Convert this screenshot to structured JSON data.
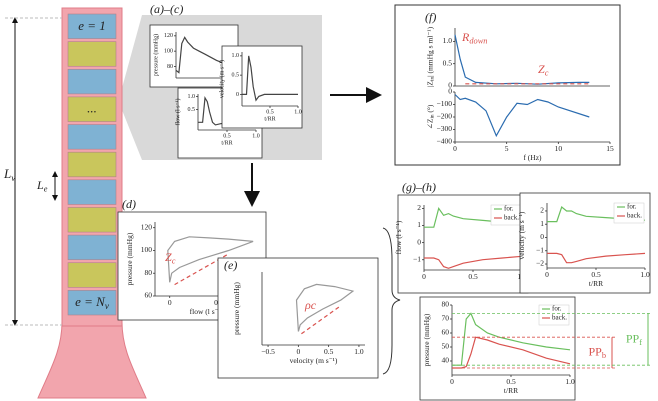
{
  "vessel": {
    "segment_labels": [
      "e = 1",
      "...",
      {
        "text": "e = N",
        "sub": "v"
      }
    ],
    "length_label": {
      "text": "L",
      "sub": "v"
    },
    "element_label": {
      "text": "L",
      "sub": "e"
    }
  },
  "panels": [
    "(a)–(c)",
    "(f)",
    "(d)",
    "(e)",
    "(g)–(h)"
  ],
  "plots": [
    {
      "ylabel": "pressure (mmHg)",
      "xlim": [
        0,
        1
      ],
      "ylim": [
        65,
        125
      ],
      "yticks": [
        80,
        100,
        120
      ],
      "xticks": [],
      "series": [
        {
          "color": "#444",
          "x": [
            0,
            0.05,
            0.1,
            0.15,
            0.2,
            0.3,
            0.4,
            0.5,
            0.6,
            0.7,
            0.8,
            0.9,
            1
          ],
          "y": [
            75,
            72,
            110,
            118,
            112,
            104,
            100,
            96,
            92,
            88,
            85,
            82,
            80
          ]
        }
      ]
    },
    {
      "ylabel": "flow (l s⁻¹)",
      "xlabel": "t/RR",
      "xlim": [
        0,
        1
      ],
      "ylim": [
        -0.3,
        1.1
      ],
      "yticks": [
        0.5,
        {
          "value": 1,
          "label": "1.0"
        }
      ],
      "xticks": [
        0.5,
        {
          "value": 1,
          "label": "1.0"
        }
      ],
      "series": [
        {
          "color": "#444",
          "x": [
            0,
            0.08,
            0.12,
            0.16,
            0.2,
            0.25,
            0.3,
            0.4,
            0.6,
            1
          ],
          "y": [
            0,
            0,
            0.95,
            0.8,
            0.4,
            0,
            -0.1,
            -0.05,
            -0.02,
            -0.02
          ]
        }
      ]
    },
    {
      "ylabel": "velocity (m s⁻¹)",
      "xlabel": "t/RR",
      "xlim": [
        0,
        1
      ],
      "ylim": [
        -0.3,
        1.1
      ],
      "yticks": [
        0,
        0.5,
        {
          "value": 1,
          "label": "1.0"
        }
      ],
      "xticks": [
        0.5,
        {
          "value": 1,
          "label": "1.0"
        }
      ],
      "series": [
        {
          "color": "#444",
          "x": [
            0,
            0.08,
            0.12,
            0.16,
            0.2,
            0.25,
            0.3,
            0.4,
            0.6,
            1
          ],
          "y": [
            0,
            0,
            1.0,
            0.7,
            0.2,
            -0.15,
            -0.05,
            0,
            0,
            0
          ]
        }
      ]
    },
    {
      "ylabel": {
        "text": "|Z",
        "sub": "in",
        "after": "| (mmHg s ml⁻¹)"
      },
      "xlim": [
        0,
        15
      ],
      "ylim": [
        0,
        1.3
      ],
      "yticks": [
        0,
        0.5,
        {
          "value": 1,
          "label": "1.0"
        }
      ],
      "xticks": [],
      "series": [
        {
          "color": "#2b6cb0",
          "x": [
            0,
            0.5,
            1,
            2,
            4,
            6,
            8,
            10,
            12,
            13
          ],
          "y": [
            1.15,
            0.6,
            0.2,
            0.08,
            0.05,
            0.06,
            0.04,
            0.07,
            0.08,
            0.08
          ]
        },
        {
          "color": "#d9534f",
          "dashed": true,
          "x": [
            1,
            13
          ],
          "y": [
            0.05,
            0.05
          ]
        }
      ],
      "annotations": [
        {
          "label": {
            "text": "R",
            "sub": "down"
          },
          "color": "#d9534f"
        },
        {
          "label": {
            "text": "Z",
            "sub": "c"
          },
          "color": "#d9534f"
        }
      ]
    },
    {
      "ylabel": {
        "text": "∠Z",
        "sub": "in",
        "after": " (°)"
      },
      "xlabel": "f (Hz)",
      "xlim": [
        0,
        15
      ],
      "ylim": [
        -400,
        0
      ],
      "yticks": [
        0,
        {
          "value": -100,
          "label": "−100"
        },
        {
          "value": -200,
          "label": "−200"
        },
        {
          "value": -300,
          "label": "−300"
        },
        {
          "value": -400,
          "label": "−400"
        }
      ],
      "xticks": [
        0,
        5,
        10,
        15
      ],
      "series": [
        {
          "color": "#2b6cb0",
          "x": [
            0,
            0.5,
            1,
            2,
            3,
            4,
            5,
            6,
            7,
            8,
            9,
            10,
            13
          ],
          "y": [
            -20,
            -60,
            -50,
            -80,
            -150,
            -350,
            -200,
            -90,
            -100,
            -60,
            -80,
            -120,
            -200
          ]
        }
      ]
    },
    {
      "ylabel": "pressure (mmHg)",
      "xlabel": "flow (l s⁻¹)",
      "xlim": [
        -0.15,
        0.9
      ],
      "ylim": [
        60,
        125
      ],
      "yticks": [
        60,
        80,
        100,
        120
      ],
      "xticks": [
        0,
        0.5
      ],
      "series": [
        {
          "color": "#999",
          "x": [
            0,
            -0.02,
            0.05,
            0.2,
            0.4,
            0.6,
            0.85,
            0.6,
            0.3,
            0.1,
            0.02,
            0
          ],
          "y": [
            72,
            100,
            108,
            112,
            111,
            110,
            108,
            100,
            92,
            85,
            80,
            72
          ]
        },
        {
          "color": "#d9534f",
          "dashed": true,
          "x": [
            0.05,
            0.6
          ],
          "y": [
            70,
            97
          ]
        }
      ],
      "annotations": [
        {
          "label": {
            "text": "Z",
            "sub": "c"
          },
          "color": "#d9534f"
        }
      ]
    },
    {
      "ylabel": "pressure (mmHg)",
      "xlabel": "velocity (m s⁻¹)",
      "xlim": [
        -0.6,
        1.1
      ],
      "ylim": [
        60,
        125
      ],
      "yticks": [],
      "xticks": [
        {
          "value": -0.5,
          "label": "−0.5"
        },
        0,
        0.5,
        {
          "value": 1,
          "label": "1.0"
        }
      ],
      "series": [
        {
          "color": "#999",
          "x": [
            0,
            -0.03,
            0.1,
            0.3,
            0.6,
            0.9,
            0.7,
            0.4,
            0.15,
            0.03,
            0
          ],
          "y": [
            72,
            100,
            110,
            114,
            112,
            108,
            100,
            92,
            84,
            78,
            72
          ]
        },
        {
          "color": "#d9534f",
          "dashed": true,
          "x": [
            0.05,
            0.7
          ],
          "y": [
            70,
            95
          ]
        }
      ],
      "annotations": [
        {
          "label": "ρc",
          "color": "#d9534f"
        }
      ]
    },
    {
      "ylabel": "flow (l s⁻¹)",
      "xlim": [
        0,
        1
      ],
      "ylim": [
        -1.6,
        2.2
      ],
      "yticks": [
        {
          "value": -1,
          "label": "−1"
        },
        0,
        1,
        2
      ],
      "xticks": [
        0,
        0.5,
        {
          "value": 1,
          "label": "1.0"
        }
      ],
      "legend": true,
      "series": [
        {
          "name": "for.",
          "color": "#6abf5e",
          "x": [
            0,
            0.1,
            0.15,
            0.2,
            0.25,
            0.3,
            0.4,
            0.6,
            0.8,
            1
          ],
          "y": [
            0.9,
            0.9,
            2.0,
            1.6,
            1.7,
            1.55,
            1.4,
            1.3,
            1.2,
            1.1
          ]
        },
        {
          "name": "back.",
          "color": "#d9534f",
          "x": [
            0,
            0.1,
            0.15,
            0.2,
            0.25,
            0.3,
            0.4,
            0.6,
            0.8,
            1
          ],
          "y": [
            -0.9,
            -0.9,
            -1.0,
            -1.4,
            -1.5,
            -1.4,
            -1.2,
            -1.0,
            -0.9,
            -0.8
          ]
        }
      ]
    },
    {
      "ylabel": "velocity (m s⁻¹)",
      "xlabel": "t/RR",
      "xlim": [
        0,
        1
      ],
      "ylim": [
        -2.3,
        2.6
      ],
      "yticks": [
        {
          "value": -2,
          "label": "−2"
        },
        {
          "value": -1,
          "label": "−1"
        },
        0,
        1,
        2
      ],
      "xticks": [
        0,
        0.5,
        {
          "value": 1,
          "label": "1.0"
        }
      ],
      "legend": true,
      "series": [
        {
          "name": "for.",
          "color": "#6abf5e",
          "x": [
            0,
            0.1,
            0.15,
            0.2,
            0.25,
            0.3,
            0.4,
            0.6,
            0.8,
            1
          ],
          "y": [
            1.2,
            1.2,
            2.3,
            2.0,
            2.0,
            1.8,
            1.6,
            1.5,
            1.4,
            1.3
          ]
        },
        {
          "name": "back.",
          "color": "#d9534f",
          "x": [
            0,
            0.1,
            0.15,
            0.2,
            0.25,
            0.3,
            0.4,
            0.6,
            0.8,
            1
          ],
          "y": [
            -1.2,
            -1.2,
            -1.3,
            -1.9,
            -1.9,
            -1.8,
            -1.6,
            -1.4,
            -1.3,
            -1.2
          ]
        }
      ]
    },
    {
      "ylabel": "pressure (mmHg)",
      "xlabel": "t/RR",
      "xlim": [
        0,
        1
      ],
      "ylim": [
        30,
        80
      ],
      "yticks": [
        40,
        50,
        60,
        70,
        80
      ],
      "xticks": [
        0,
        0.5,
        {
          "value": 1,
          "label": "1.0"
        }
      ],
      "legend": true,
      "series": [
        {
          "name": "for.",
          "color": "#6abf5e",
          "x": [
            0,
            0.08,
            0.12,
            0.16,
            0.2,
            0.3,
            0.4,
            0.6,
            0.8,
            1
          ],
          "y": [
            37,
            37,
            70,
            74,
            66,
            60,
            57,
            53,
            50,
            48
          ]
        },
        {
          "name": "back.",
          "color": "#d9534f",
          "x": [
            0,
            0.08,
            0.12,
            0.16,
            0.2,
            0.3,
            0.4,
            0.6,
            0.8,
            1
          ],
          "y": [
            35,
            35,
            36,
            45,
            57,
            55,
            52,
            48,
            42,
            38
          ]
        }
      ],
      "pulse_pressures": [
        {
          "label": {
            "text": "PP",
            "sub": "b"
          },
          "color": "#d9534f",
          "range": [
            35,
            57
          ]
        },
        {
          "label": {
            "text": "PP",
            "sub": "f"
          },
          "color": "#6abf5e",
          "range": [
            37,
            74
          ]
        }
      ]
    }
  ]
}
